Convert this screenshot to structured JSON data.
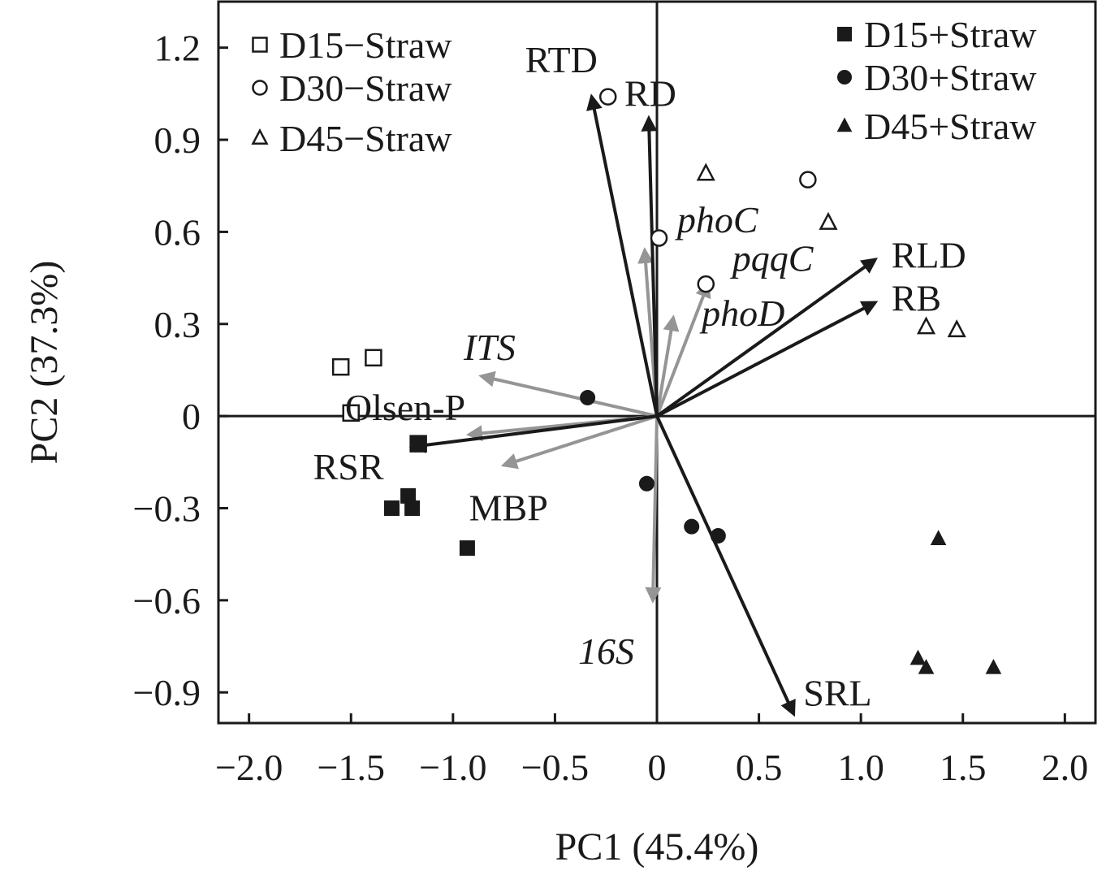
{
  "chart_data": {
    "type": "scatter",
    "subtype": "pca-biplot",
    "xlabel": "PC1 (45.4%)",
    "ylabel": "PC2 (37.3%)",
    "xlim": [
      -2.15,
      2.15
    ],
    "ylim": [
      -1.0,
      1.35
    ],
    "xticks": [
      -2.0,
      -1.5,
      -1.0,
      -0.5,
      0,
      0.5,
      1.0,
      1.5,
      2.0
    ],
    "xtick_labels": [
      "−2.0",
      "−1.5",
      "−1.0",
      "−0.5",
      "0",
      "0.5",
      "1.0",
      "1.5",
      "2.0"
    ],
    "yticks": [
      1.2,
      0.9,
      0.6,
      0.3,
      0,
      -0.3,
      -0.6,
      -0.9
    ],
    "ytick_labels": [
      "1.2",
      "0.9",
      "0.6",
      "0.3",
      "0",
      "−0.3",
      "−0.6",
      "−0.9"
    ],
    "grid": false,
    "zero_lines": true,
    "legend_left": [
      "D15−Straw",
      "D30−Straw",
      "D45−Straw"
    ],
    "legend_right": [
      "D15+Straw",
      "D30+Straw",
      "D45+Straw"
    ],
    "series": [
      {
        "name": "D15−Straw",
        "marker": "square",
        "filled": false,
        "points": [
          [
            -1.55,
            0.16
          ],
          [
            -1.39,
            0.19
          ],
          [
            -1.5,
            0.01
          ],
          [
            -1.17,
            -0.09
          ]
        ]
      },
      {
        "name": "D30−Straw",
        "marker": "circle",
        "filled": false,
        "points": [
          [
            -0.24,
            1.04
          ],
          [
            0.01,
            0.58
          ],
          [
            0.74,
            0.77
          ],
          [
            0.24,
            0.43
          ]
        ]
      },
      {
        "name": "D45−Straw",
        "marker": "triangle",
        "filled": false,
        "points": [
          [
            0.24,
            0.79
          ],
          [
            0.84,
            0.63
          ],
          [
            1.32,
            0.29
          ],
          [
            1.47,
            0.28
          ]
        ]
      },
      {
        "name": "D15+Straw",
        "marker": "square",
        "filled": true,
        "points": [
          [
            -1.17,
            -0.09
          ],
          [
            -1.22,
            -0.26
          ],
          [
            -1.3,
            -0.3
          ],
          [
            -1.2,
            -0.3
          ],
          [
            -0.93,
            -0.43
          ]
        ]
      },
      {
        "name": "D30+Straw",
        "marker": "circle",
        "filled": true,
        "points": [
          [
            -0.34,
            0.06
          ],
          [
            -0.05,
            -0.22
          ],
          [
            0.17,
            -0.36
          ],
          [
            0.3,
            -0.39
          ]
        ]
      },
      {
        "name": "D45+Straw",
        "marker": "triangle",
        "filled": true,
        "points": [
          [
            1.38,
            -0.4
          ],
          [
            1.28,
            -0.79
          ],
          [
            1.32,
            -0.82
          ],
          [
            1.65,
            -0.82
          ]
        ]
      }
    ],
    "loadings": [
      {
        "name": "RTD",
        "x": -0.32,
        "y": 1.04,
        "group": "root",
        "italic": false
      },
      {
        "name": "RD",
        "x": -0.04,
        "y": 0.97,
        "group": "root",
        "italic": false
      },
      {
        "name": "RLD",
        "x": 1.07,
        "y": 0.51,
        "group": "root",
        "italic": false
      },
      {
        "name": "RB",
        "x": 1.07,
        "y": 0.37,
        "group": "root",
        "italic": false
      },
      {
        "name": "SRL",
        "x": 0.67,
        "y": -0.97,
        "group": "root",
        "italic": false
      },
      {
        "name": "RSR",
        "x": -1.2,
        "y": -0.1,
        "group": "root",
        "italic": false
      },
      {
        "name": "phoC",
        "x": -0.06,
        "y": 0.54,
        "group": "soil",
        "italic": true
      },
      {
        "name": "pqqC",
        "x": 0.25,
        "y": 0.43,
        "group": "soil",
        "italic": true
      },
      {
        "name": "phoD",
        "x": 0.08,
        "y": 0.32,
        "group": "soil",
        "italic": true
      },
      {
        "name": "ITS",
        "x": -0.86,
        "y": 0.13,
        "group": "soil",
        "italic": true
      },
      {
        "name": "Olsen-P",
        "x": -0.92,
        "y": -0.06,
        "group": "soil",
        "italic": false
      },
      {
        "name": "MBP",
        "x": -0.75,
        "y": -0.16,
        "group": "soil",
        "italic": false
      },
      {
        "name": "16S",
        "x": -0.02,
        "y": -0.6,
        "group": "soil",
        "italic": true
      }
    ],
    "colors": {
      "root_arrow": "#1a1a1a",
      "soil_arrow": "#959595",
      "marker": "#1a1a1a",
      "frame": "#1a1a1a"
    }
  }
}
